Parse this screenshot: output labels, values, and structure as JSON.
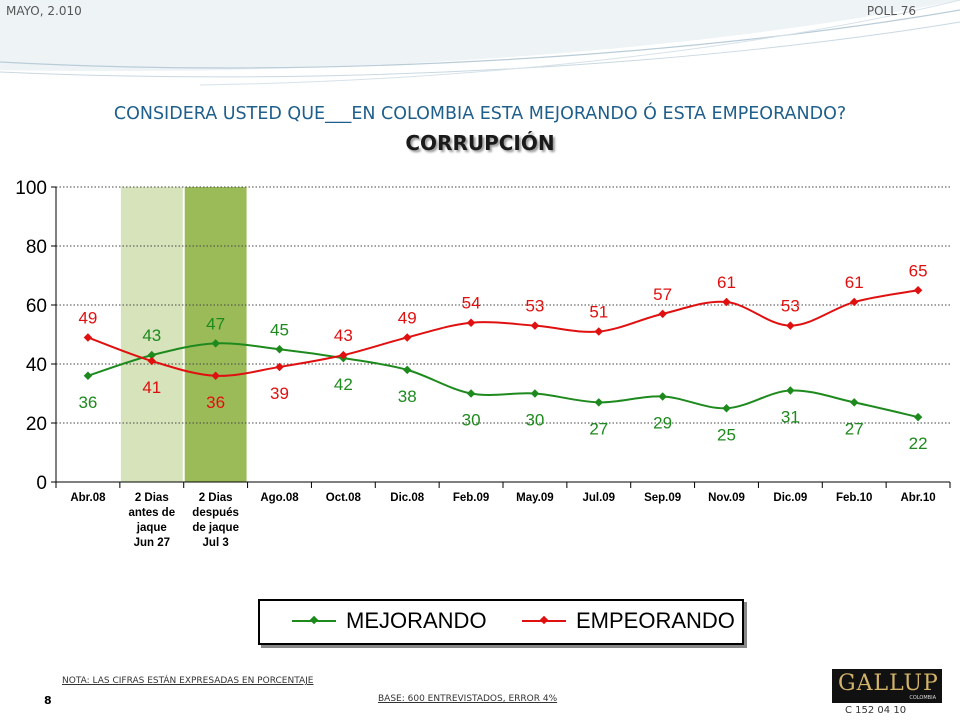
{
  "header": {
    "date": "MAYO, 2.010",
    "poll": "POLL 76"
  },
  "title": "CONSIDERA USTED QUE___EN COLOMBIA ESTA MEJORANDO Ó ESTA EMPEORANDO?",
  "subtitle": "CORRUPCIÓN",
  "chart_data": {
    "type": "line",
    "categories": [
      "Abr.08",
      "2 Dias antes de jaque Jun 27",
      "2 Dias después de jaque Jul 3",
      "Ago.08",
      "Oct.08",
      "Dic.08",
      "Feb.09",
      "May.09",
      "Jul.09",
      "Sep.09",
      "Nov.09",
      "Dic.09",
      "Feb.10",
      "Abr.10"
    ],
    "category_lines": [
      [
        "Abr.08"
      ],
      [
        "2 Dias",
        "antes de",
        "jaque",
        "Jun 27"
      ],
      [
        "2 Dias",
        "después",
        "de jaque",
        "Jul 3"
      ],
      [
        "Ago.08"
      ],
      [
        "Oct.08"
      ],
      [
        "Dic.08"
      ],
      [
        "Feb.09"
      ],
      [
        "May.09"
      ],
      [
        "Jul.09"
      ],
      [
        "Sep.09"
      ],
      [
        "Nov.09"
      ],
      [
        "Dic.09"
      ],
      [
        "Feb.10"
      ],
      [
        "Abr.10"
      ]
    ],
    "series": [
      {
        "name": "MEJORANDO",
        "color": "#1e8a1e",
        "values": [
          36,
          43,
          47,
          45,
          42,
          38,
          30,
          30,
          27,
          29,
          25,
          31,
          27,
          22
        ]
      },
      {
        "name": "EMPEORANDO",
        "color": "#e01010",
        "values": [
          49,
          41,
          36,
          39,
          43,
          49,
          54,
          53,
          51,
          57,
          61,
          53,
          61,
          65
        ]
      }
    ],
    "ylim": [
      0,
      100
    ],
    "yticks": [
      0,
      20,
      40,
      60,
      80,
      100
    ],
    "grid": true,
    "highlight_colors": [
      "#d6e3bb",
      "#9bbb59"
    ],
    "legend_position": "bottom"
  },
  "note": "NOTA: LAS CIFRAS ESTÁN EXPRESADAS EN PORCENTAJE",
  "base": "BASE: 600 ENTREVISTADOS, ERROR 4%",
  "page_number": "8",
  "logo": {
    "text": "GALLUP",
    "sub": "COLOMBIA"
  },
  "code": "C 152 04 10"
}
